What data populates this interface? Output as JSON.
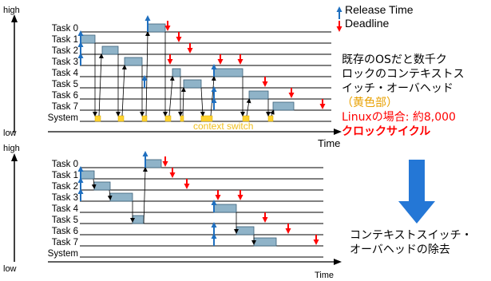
{
  "legend": {
    "release": "Release Time",
    "deadline": "Deadline"
  },
  "colors": {
    "release": "#1f6fbf",
    "deadline": "#ff0000",
    "bar": "#8fb3c8",
    "context": "#ffd22e",
    "context_text": "#f0c020",
    "big_arrow": "#2477d6"
  },
  "top": {
    "high_label": "high",
    "low_label": "low",
    "time_label": "Time",
    "tasks": [
      "Task 0",
      "Task 1",
      "Task 2",
      "Task 3",
      "Task 4",
      "Task 5",
      "Task 6",
      "Task 7",
      "System"
    ],
    "context_label": "context switch"
  },
  "bottom": {
    "high_label": "high",
    "low_label": "low",
    "time_label": "Time",
    "tasks": [
      "Task 0",
      "Task 1",
      "Task 2",
      "Task 3",
      "Task 4",
      "Task 5",
      "Task 6",
      "Task 7",
      "System"
    ]
  },
  "side_text": {
    "line1": "既存のOSだと数千ク",
    "line2": "ロックのコンテキストス",
    "line3": "イッチ・オーバヘッド",
    "line4": "（黄色部）",
    "line5": "Linuxの場合: 約8,000",
    "line6": "クロックサイクル"
  },
  "result_text": {
    "line1": "コンテキストスイッチ・",
    "line2": "オーバヘッドの除去"
  }
}
